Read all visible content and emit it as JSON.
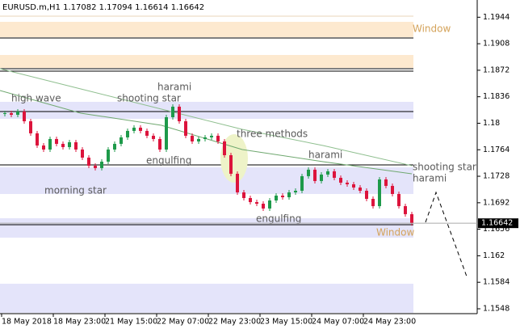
{
  "chart_data": {
    "type": "candlestick",
    "title": "EURUSD.m,H1  1.17082 1.17094 1.16614 1.16642",
    "close": [
      1.18137,
      1.18115,
      1.18159,
      1.18027,
      1.17863,
      1.17698,
      1.17643,
      1.17786,
      1.1772,
      1.17676,
      1.17742,
      1.17643,
      1.17533,
      1.17423,
      1.17391,
      1.17478,
      1.17643,
      1.1772,
      1.17808,
      1.17896,
      1.1794,
      1.17896,
      1.1783,
      1.17786,
      1.17643,
      1.18082,
      1.18225,
      1.18027,
      1.1783,
      1.17753,
      1.17786,
      1.17808,
      1.1783,
      1.17753,
      1.17566,
      1.17314,
      1.17061,
      1.16984,
      1.16929,
      1.16907,
      1.16842,
      1.16951,
      1.17017,
      1.16995,
      1.17061,
      1.17083,
      1.17281,
      1.17369,
      1.17215,
      1.17303,
      1.17347,
      1.17259,
      1.17193,
      1.17171,
      1.17127,
      1.17083,
      1.16973,
      1.16874,
      1.17237,
      1.17149,
      1.17039,
      1.16874,
      1.16765,
      1.16642
    ],
    "up_color": "#1e9a4a",
    "down_color": "#dc143c",
    "current_price": 1.16642,
    "xlim": [
      -0.5,
      63.5
    ],
    "xticks": [
      {
        "value": 0,
        "label": "18 May 2018"
      },
      {
        "value": 8,
        "label": "18 May 23:00"
      },
      {
        "value": 16,
        "label": "21 May 15:00"
      },
      {
        "value": 24,
        "label": "22 May 07:00"
      },
      {
        "value": 32,
        "label": "22 May 23:00"
      },
      {
        "value": 40,
        "label": "23 May 15:00"
      },
      {
        "value": 48,
        "label": "24 May 07:00"
      },
      {
        "value": 56,
        "label": "24 May 23:00"
      }
    ],
    "ylim": [
      1.15414,
      1.19674
    ],
    "yticks": [
      1.1944,
      1.1908,
      1.1872,
      1.1836,
      1.18,
      1.1764,
      1.1728,
      1.1692,
      1.1656,
      1.162,
      1.1584,
      1.1548
    ],
    "annotations": [
      "high wave",
      "harami",
      "shooting star",
      "three methods",
      "engulfing",
      "morning star",
      "harami",
      "shooting star",
      "harami",
      "engulfing",
      "Window",
      "Window"
    ]
  }
}
